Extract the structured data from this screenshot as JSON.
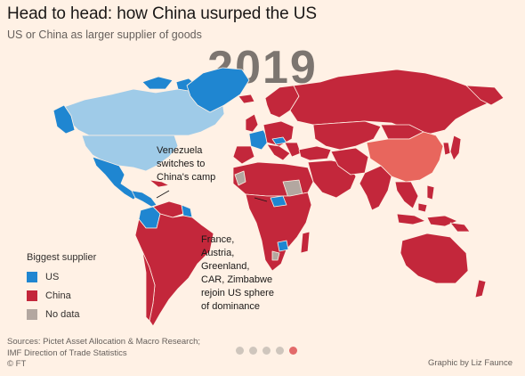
{
  "header": {
    "title": "Head to head: how China usurped the US",
    "subtitle": "US or China as larger supplier of goods",
    "year": "2019"
  },
  "colors": {
    "background": "#fff1e5",
    "us": "#1f86d1",
    "us_light": "#9fcbe8",
    "china": "#c3273b",
    "china_highlight": "#e8665d",
    "no_data": "#b3a7a0",
    "border": "#fff1e5"
  },
  "annotations": {
    "venezuela": [
      "Venezuela",
      "switches to",
      "China's camp"
    ],
    "rejoin": [
      "France,",
      "Austria,",
      "Greenland,",
      "CAR, Zimbabwe",
      "rejoin US sphere",
      "of dominance"
    ]
  },
  "legend": {
    "title": "Biggest supplier",
    "items": [
      {
        "label": "US",
        "color": "#1f86d1"
      },
      {
        "label": "China",
        "color": "#c3273b"
      },
      {
        "label": "No data",
        "color": "#b3a7a0"
      }
    ]
  },
  "footer": {
    "sources": [
      "Sources: Pictet Asset Allocation & Macro Research;",
      "IMF Direction of Trade Statistics",
      "© FT"
    ],
    "credit": "Graphic by Liz Faunce"
  },
  "pagination": {
    "count": 5,
    "active": 4
  }
}
